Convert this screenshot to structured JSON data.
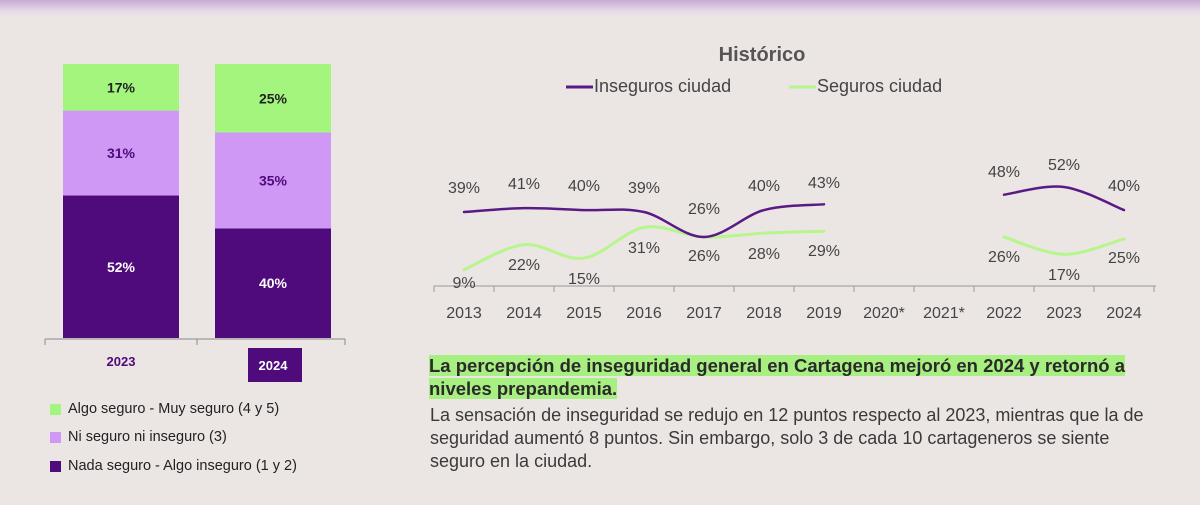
{
  "chart_data": [
    {
      "type": "bar",
      "stacked": true,
      "categories": [
        "2023",
        "2024"
      ],
      "series": [
        {
          "name": "Nada seguro - Algo inseguro (1 y 2)",
          "color": "#4f0a7c",
          "values": [
            52,
            40
          ],
          "labels": [
            "52%",
            "40%"
          ]
        },
        {
          "name": "Ni seguro ni inseguro (3)",
          "color": "#cf98f5",
          "values": [
            31,
            35
          ],
          "labels": [
            "31%",
            "35%"
          ]
        },
        {
          "name": "Algo seguro - Muy seguro (4 y 5)",
          "color": "#a3f57e",
          "values": [
            17,
            25
          ],
          "labels": [
            "17%",
            "25%"
          ]
        }
      ],
      "ylim": [
        0,
        100
      ]
    },
    {
      "type": "line",
      "title": "Histórico",
      "categories": [
        "2013",
        "2014",
        "2015",
        "2016",
        "2017",
        "2018",
        "2019",
        "2020*",
        "2021*",
        "2022",
        "2023",
        "2024"
      ],
      "series": [
        {
          "name": "Inseguros ciudad",
          "color": "#5a1a85",
          "values": [
            39,
            41,
            40,
            39,
            26,
            40,
            43,
            null,
            null,
            48,
            52,
            40
          ]
        },
        {
          "name": "Seguros ciudad",
          "color": "#b7f58d",
          "values": [
            9,
            22,
            15,
            31,
            26,
            28,
            29,
            null,
            null,
            26,
            17,
            25
          ]
        }
      ],
      "legend": "top"
    }
  ],
  "legend_items": [
    {
      "label": "Algo seguro - Muy seguro (4 y 5)",
      "color": "#a3f57e"
    },
    {
      "label": "Ni seguro ni inseguro (3)",
      "color": "#cf98f5"
    },
    {
      "label": "Nada seguro - Algo inseguro (1 y 2)",
      "color": "#4f0a7c"
    }
  ],
  "headline": "La percepción de inseguridad general en Cartagena mejoró en 2024 y retornó a niveles prepandemia.",
  "body": "La sensación de inseguridad se redujo en 12 puntos respecto al 2023, mientras que la de seguridad aumentó 8 puntos. Sin embargo, solo 3 de cada 10 cartageneros se siente seguro en la ciudad."
}
